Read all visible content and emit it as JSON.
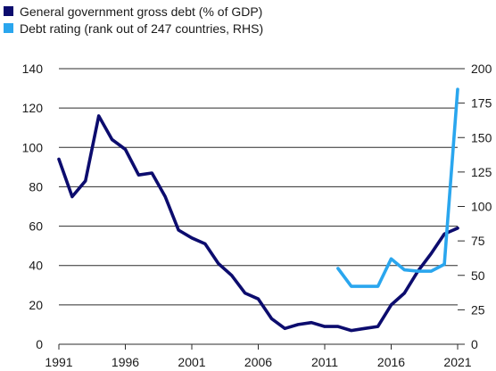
{
  "chart_data": {
    "type": "line",
    "legend": [
      {
        "name": "General government gross debt (% of GDP)",
        "color": "#0c0c6e"
      },
      {
        "name": "Debt rating (rank out of 247 countries, RHS)",
        "color": "#2aa6ee"
      }
    ],
    "x_ticks": [
      "1991",
      "1996",
      "2001",
      "2006",
      "2011",
      "2016",
      "2021"
    ],
    "x_range": [
      1991,
      2021
    ],
    "y_left": {
      "range": [
        0,
        140
      ],
      "ticks": [
        "0",
        "20",
        "40",
        "60",
        "80",
        "100",
        "120",
        "140"
      ]
    },
    "y_right": {
      "range": [
        0,
        200
      ],
      "ticks": [
        "0",
        "25",
        "50",
        "75",
        "100",
        "125",
        "150",
        "175",
        "200"
      ]
    },
    "series": [
      {
        "name": "General government gross debt (% of GDP)",
        "axis": "left",
        "color": "#0c0c6e",
        "x": [
          1991,
          1992,
          1993,
          1994,
          1995,
          1996,
          1997,
          1998,
          1999,
          2000,
          2001,
          2002,
          2003,
          2004,
          2005,
          2006,
          2007,
          2008,
          2009,
          2010,
          2011,
          2012,
          2013,
          2014,
          2015,
          2016,
          2017,
          2018,
          2019,
          2020,
          2021
        ],
        "y": [
          94,
          75,
          83,
          116,
          104,
          99,
          86,
          87,
          75,
          58,
          54,
          51,
          41,
          35,
          26,
          23,
          13,
          8,
          10,
          11,
          9,
          9,
          7,
          8,
          9,
          20,
          26,
          37,
          46,
          56,
          59
        ]
      },
      {
        "name": "Debt rating (rank out of 247 countries, RHS)",
        "axis": "right",
        "color": "#2aa6ee",
        "x": [
          2012,
          2013,
          2014,
          2015,
          2016,
          2017,
          2018,
          2019,
          2020,
          2021
        ],
        "y": [
          55,
          42,
          42,
          42,
          62,
          54,
          53,
          53,
          58,
          185
        ]
      }
    ]
  }
}
